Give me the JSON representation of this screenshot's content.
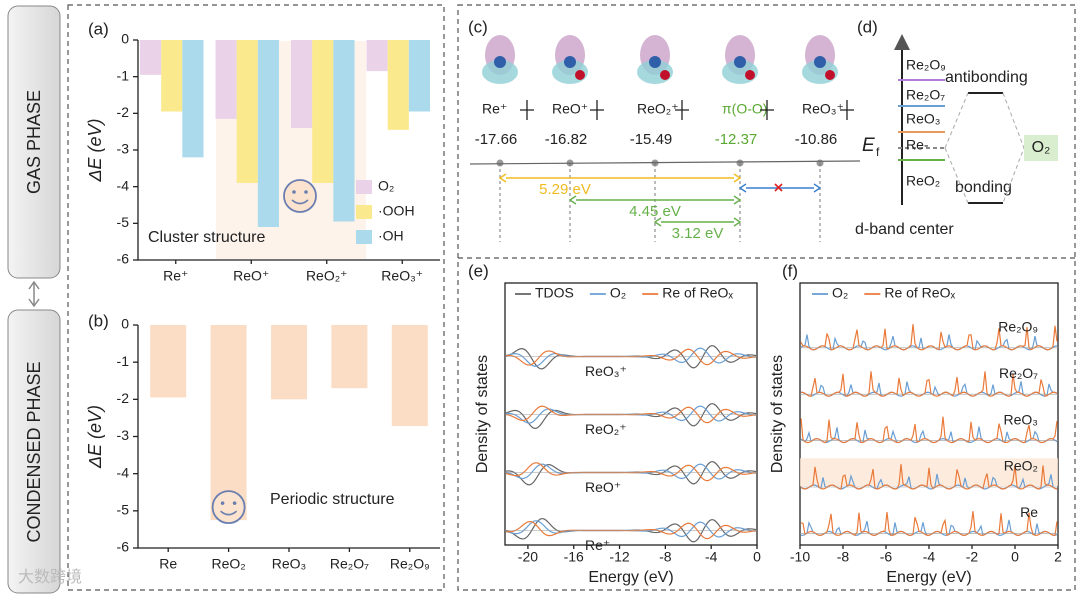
{
  "side_labels": {
    "gas": "GAS PHASE",
    "condensed": "CONDENSED PHASE"
  },
  "chart_data": [
    {
      "type": "bar",
      "panel": "(a)",
      "ylabel": "ΔE (eV)",
      "annotation": "Cluster structure",
      "categories": [
        "Re⁺",
        "ReO⁺",
        "ReO₂⁺",
        "ReO₃⁺"
      ],
      "series": [
        {
          "name": "O₂",
          "color": "#ead3e8",
          "values": [
            -0.95,
            -2.15,
            -2.4,
            -0.85
          ]
        },
        {
          "name": "·OOH",
          "color": "#fbe98e",
          "values": [
            -1.95,
            -3.9,
            -3.9,
            -2.45
          ]
        },
        {
          "name": "·OH",
          "color": "#aadaeb",
          "values": [
            -3.2,
            -5.1,
            -4.95,
            -1.95
          ]
        }
      ],
      "ylim": [
        -6,
        0
      ],
      "yticks": [
        0,
        -1,
        -2,
        -3,
        -4,
        -5,
        -6
      ]
    },
    {
      "type": "bar",
      "panel": "(b)",
      "ylabel": "ΔE (eV)",
      "annotation": "Periodic structure",
      "categories": [
        "Re",
        "ReO₂",
        "ReO₃",
        "Re₂O₇",
        "Re₂O₉"
      ],
      "values": [
        -1.95,
        -5.25,
        -2.0,
        -1.7,
        -2.72
      ],
      "color": "#fbdcc4",
      "ylim": [
        -6,
        0
      ],
      "yticks": [
        0,
        -1,
        -2,
        -3,
        -4,
        -5,
        -6
      ]
    },
    {
      "type": "dos",
      "panel": "(e)",
      "xlabel": "Energy (eV)",
      "ylabel": "Density of states",
      "legend": [
        {
          "name": "TDOS",
          "color": "#666666"
        },
        {
          "name": "O₂",
          "color": "#6a9fd4"
        },
        {
          "name": "Re of ReOₓ",
          "color": "#ea7a3a"
        }
      ],
      "curve_labels": [
        "ReO₃⁺",
        "ReO₂⁺",
        "ReO⁺",
        "Re⁺"
      ],
      "xlim": [
        -22,
        0
      ],
      "xticks": [
        -20,
        -16,
        -12,
        -8,
        -4,
        0
      ]
    },
    {
      "type": "dos",
      "panel": "(f)",
      "xlabel": "Energy (eV)",
      "ylabel": "Density of states",
      "legend": [
        {
          "name": "O₂",
          "color": "#6a9fd4"
        },
        {
          "name": "Re of ReOₓ",
          "color": "#ea7a3a"
        }
      ],
      "curve_labels": [
        "Re₂O₉",
        "Re₂O₇",
        "ReO₃",
        "ReO₂",
        "Re"
      ],
      "xlim": [
        -10,
        2
      ],
      "xticks": [
        -10,
        -8,
        -6,
        -4,
        -2,
        0,
        2
      ]
    }
  ],
  "panel_c": {
    "panel": "(c)",
    "levels": [
      {
        "label": "Re⁺",
        "energy": "-17.66"
      },
      {
        "label": "ReO⁺",
        "energy": "-16.82"
      },
      {
        "label": "ReO₂⁺",
        "energy": "-15.49"
      },
      {
        "label": "π(O-O)",
        "energy": "-12.37"
      },
      {
        "label": "ReO₃⁺",
        "energy": "-10.86"
      }
    ],
    "gaps": [
      "5.29 eV",
      "4.45 eV",
      "3.12 eV"
    ]
  },
  "panel_d": {
    "panel": "(d)",
    "levels": [
      "Re₂O₉",
      "Re₂O₇",
      "ReO₃",
      "Re-",
      "ReO₂"
    ],
    "antibonding": "antibonding",
    "bonding": "bonding",
    "fermi": "E",
    "fermi_sub": "f",
    "molecule": "O₂",
    "xlabel": "d-band center"
  },
  "watermark": "大数跨境"
}
